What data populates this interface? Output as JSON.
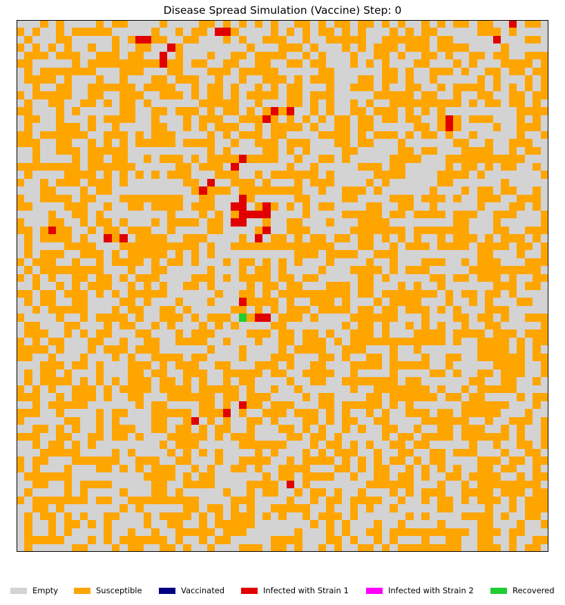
{
  "chart_data": {
    "type": "heatmap",
    "title": "Disease Spread Simulation (Vaccine) Step: 0",
    "grid_size": 67,
    "states": [
      {
        "code": 0,
        "name": "Empty",
        "color": "#d3d3d3"
      },
      {
        "code": 1,
        "name": "Susceptible",
        "color": "#ffa500"
      },
      {
        "code": 2,
        "name": "Vaccinated",
        "color": "#000080"
      },
      {
        "code": 3,
        "name": "Infected with Strain 1",
        "color": "#e00000"
      },
      {
        "code": 4,
        "name": "Infected with Strain 2",
        "color": "#ff00ff"
      },
      {
        "code": 5,
        "name": "Recovered",
        "color": "#22cc33"
      }
    ],
    "susceptible_fraction": 0.5,
    "infected_strain1_cells": [
      [
        62,
        0
      ],
      [
        25,
        1
      ],
      [
        26,
        1
      ],
      [
        15,
        2
      ],
      [
        16,
        2
      ],
      [
        60,
        2
      ],
      [
        19,
        3
      ],
      [
        18,
        4
      ],
      [
        18,
        5
      ],
      [
        32,
        11
      ],
      [
        34,
        11
      ],
      [
        31,
        12
      ],
      [
        54,
        12
      ],
      [
        54,
        13
      ],
      [
        28,
        17
      ],
      [
        27,
        18
      ],
      [
        24,
        20
      ],
      [
        23,
        21
      ],
      [
        28,
        22
      ],
      [
        27,
        23
      ],
      [
        28,
        23
      ],
      [
        31,
        23
      ],
      [
        28,
        24
      ],
      [
        29,
        24
      ],
      [
        30,
        24
      ],
      [
        31,
        24
      ],
      [
        27,
        25
      ],
      [
        28,
        25
      ],
      [
        4,
        26
      ],
      [
        31,
        26
      ],
      [
        11,
        27
      ],
      [
        13,
        27
      ],
      [
        30,
        27
      ],
      [
        28,
        35
      ],
      [
        30,
        37
      ],
      [
        31,
        37
      ],
      [
        28,
        48
      ],
      [
        26,
        49
      ],
      [
        22,
        50
      ],
      [
        34,
        58
      ]
    ],
    "recovered_cells": [
      [
        28,
        37
      ]
    ],
    "legend_position": "bottom"
  }
}
